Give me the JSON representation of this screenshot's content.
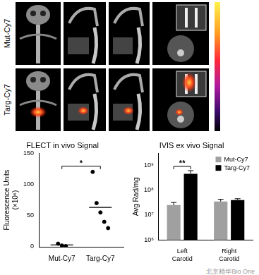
{
  "image_panels": {
    "row_labels": [
      "Mut-Cy7",
      "Targ-Cy7"
    ]
  },
  "watermark": "北京精华Bio One",
  "chart_data": [
    {
      "type": "scatter",
      "title": "FLECT in vivo Signal",
      "y_label": "Fluorescence Units (×10⁶)",
      "categories": [
        "Mut-Cy7",
        "Targ-Cy7"
      ],
      "values": [
        [
          5,
          2,
          1
        ],
        [
          120,
          70,
          55,
          40,
          30
        ]
      ],
      "means": [
        3,
        63
      ],
      "color": "#000000",
      "ylim": [
        0,
        150
      ],
      "yticks": [
        0,
        50,
        100,
        150
      ],
      "grid": false,
      "significance": [
        {
          "label": "*",
          "categories": [
            "Mut-Cy7",
            "Targ-Cy7"
          ]
        }
      ]
    },
    {
      "type": "bar",
      "title": "IVIS ex vivo Signal",
      "y_label": "Avg Rad/mg",
      "categories": [
        "Left Carotid",
        "Right Carotid"
      ],
      "series": [
        {
          "name": "Mut-Cy7",
          "color": "#a0a0a0",
          "values": [
            25000000,
            35000000
          ],
          "errors": [
            7000000,
            8000000
          ]
        },
        {
          "name": "Targ-Cy7",
          "color": "#000000",
          "values": [
            450000000,
            40000000
          ],
          "errors": [
            150000000,
            5000000
          ]
        }
      ],
      "log": "y",
      "ylim": [
        1000000,
        3000000000
      ],
      "yticks": [
        {
          "value": 1000000,
          "label": "10⁶"
        },
        {
          "value": 10000000,
          "label": "10⁷"
        },
        {
          "value": 100000000,
          "label": "10⁸"
        },
        {
          "value": 1000000000,
          "label": "10⁹"
        }
      ],
      "grid": false,
      "legend": "top-right",
      "significance": [
        {
          "label": "**",
          "category": "Left Carotid"
        }
      ]
    }
  ]
}
